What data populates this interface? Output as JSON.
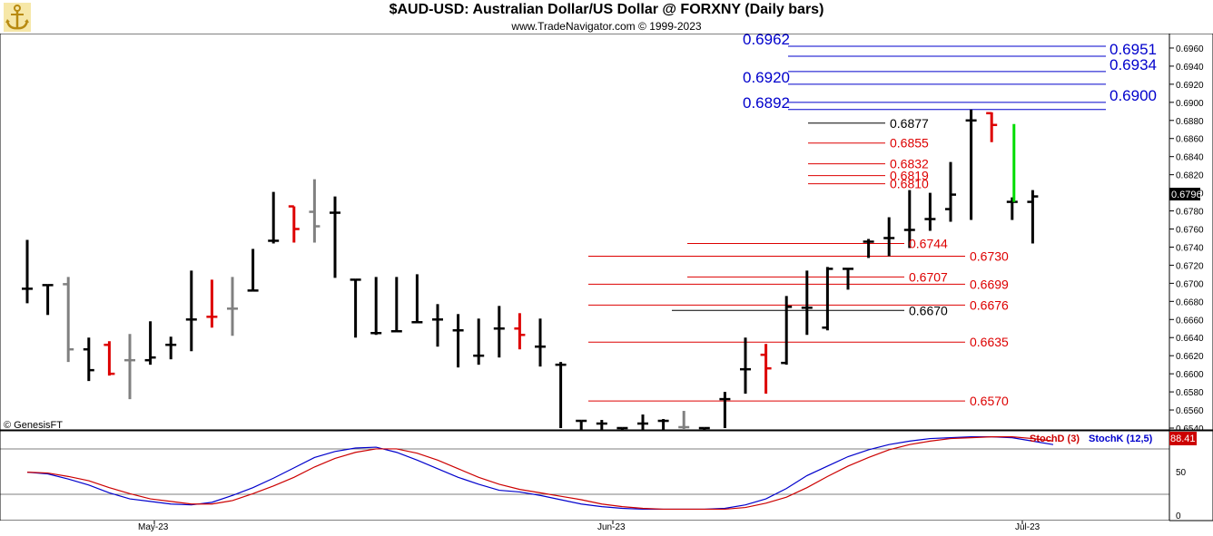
{
  "header": {
    "title": "$AUD-USD:  Australian Dollar/US Dollar @ FORXNY  (Daily bars)",
    "subtitle": "www.TradeNavigator.com © 1999-2023",
    "logo_icon": "anchor-icon"
  },
  "chart_data": [
    {
      "type": "ohlc",
      "title": "$AUD-USD:  Australian Dollar/US Dollar @ FORXNY  (Daily bars)",
      "watermark": "© GenesisFT",
      "y_axis": {
        "range": [
          0.6538,
          0.6976
        ],
        "ticks": [
          "0.6960",
          "0.6940",
          "0.6920",
          "0.6900",
          "0.6880",
          "0.6860",
          "0.6840",
          "0.6820",
          "0.6800",
          "0.6780",
          "0.6760",
          "0.6740",
          "0.6720",
          "0.6700",
          "0.6680",
          "0.6660",
          "0.6640",
          "0.6620",
          "0.6600",
          "0.6580",
          "0.6560",
          "0.6540"
        ],
        "last_price_label": "0.6796"
      },
      "x_axis": {
        "labels": [
          "May-23",
          "Jun-23",
          "Jul-23"
        ]
      },
      "colors": {
        "up": "#000000",
        "down": "#dd0000",
        "neutral": "#808080",
        "projection": "#00dd00",
        "blue_levels": "#0000cc",
        "red_levels": "#dd0000",
        "black_levels": "#000000"
      },
      "bars": [
        {
          "date": "2023-04-24",
          "o": 0.6694,
          "h": 0.6748,
          "l": 0.6678,
          "c": 0.6694,
          "color": "black"
        },
        {
          "date": "2023-04-25",
          "o": 0.6698,
          "h": 0.6698,
          "l": 0.6665,
          "c": 0.6698,
          "color": "black"
        },
        {
          "date": "2023-04-26",
          "o": 0.6699,
          "h": 0.6707,
          "l": 0.6613,
          "c": 0.6627,
          "color": "gray"
        },
        {
          "date": "2023-04-27",
          "o": 0.6627,
          "h": 0.664,
          "l": 0.6592,
          "c": 0.6604,
          "color": "black"
        },
        {
          "date": "2023-04-28",
          "o": 0.6632,
          "h": 0.6636,
          "l": 0.6598,
          "c": 0.66,
          "color": "red"
        },
        {
          "date": "2023-05-01",
          "o": 0.6615,
          "h": 0.6644,
          "l": 0.6572,
          "c": 0.6615,
          "color": "gray"
        },
        {
          "date": "2023-05-02",
          "o": 0.6615,
          "h": 0.6658,
          "l": 0.661,
          "c": 0.6618,
          "color": "black"
        },
        {
          "date": "2023-05-03",
          "o": 0.6632,
          "h": 0.6641,
          "l": 0.6616,
          "c": 0.6632,
          "color": "black"
        },
        {
          "date": "2023-05-04",
          "o": 0.666,
          "h": 0.6714,
          "l": 0.6625,
          "c": 0.666,
          "color": "black"
        },
        {
          "date": "2023-05-05",
          "o": 0.6663,
          "h": 0.6704,
          "l": 0.6651,
          "c": 0.6663,
          "color": "red"
        },
        {
          "date": "2023-05-08",
          "o": 0.6672,
          "h": 0.6707,
          "l": 0.6642,
          "c": 0.6672,
          "color": "gray"
        },
        {
          "date": "2023-05-09",
          "o": 0.6692,
          "h": 0.6738,
          "l": 0.6692,
          "c": 0.6692,
          "color": "black"
        },
        {
          "date": "2023-05-10",
          "o": 0.6747,
          "h": 0.6801,
          "l": 0.6744,
          "c": 0.6747,
          "color": "black"
        },
        {
          "date": "2023-05-11",
          "o": 0.6785,
          "h": 0.6785,
          "l": 0.6745,
          "c": 0.676,
          "color": "red"
        },
        {
          "date": "2023-05-12",
          "o": 0.6779,
          "h": 0.6815,
          "l": 0.6745,
          "c": 0.6763,
          "color": "gray"
        },
        {
          "date": "2023-05-15",
          "o": 0.6778,
          "h": 0.6796,
          "l": 0.6706,
          "c": 0.6778,
          "color": "black"
        },
        {
          "date": "2023-05-16",
          "o": 0.6704,
          "h": 0.6704,
          "l": 0.664,
          "c": 0.6704,
          "color": "black"
        },
        {
          "date": "2023-05-17",
          "o": 0.6645,
          "h": 0.6707,
          "l": 0.6643,
          "c": 0.6645,
          "color": "black"
        },
        {
          "date": "2023-05-18",
          "o": 0.6647,
          "h": 0.6707,
          "l": 0.6646,
          "c": 0.6647,
          "color": "black"
        },
        {
          "date": "2023-05-19",
          "o": 0.6657,
          "h": 0.671,
          "l": 0.6656,
          "c": 0.6657,
          "color": "black"
        },
        {
          "date": "2023-05-22",
          "o": 0.666,
          "h": 0.6677,
          "l": 0.663,
          "c": 0.666,
          "color": "black"
        },
        {
          "date": "2023-05-23",
          "o": 0.6648,
          "h": 0.6666,
          "l": 0.6607,
          "c": 0.6648,
          "color": "black"
        },
        {
          "date": "2023-05-24",
          "o": 0.662,
          "h": 0.6661,
          "l": 0.661,
          "c": 0.662,
          "color": "black"
        },
        {
          "date": "2023-05-25",
          "o": 0.665,
          "h": 0.6675,
          "l": 0.6618,
          "c": 0.665,
          "color": "black"
        },
        {
          "date": "2023-05-26",
          "o": 0.665,
          "h": 0.6667,
          "l": 0.6627,
          "c": 0.6643,
          "color": "red"
        },
        {
          "date": "2023-05-29",
          "o": 0.663,
          "h": 0.6661,
          "l": 0.6608,
          "c": 0.663,
          "color": "black"
        },
        {
          "date": "2023-05-30",
          "o": 0.661,
          "h": 0.6613,
          "l": 0.654,
          "c": 0.661,
          "color": "black"
        },
        {
          "date": "2023-05-31",
          "o": 0.6548,
          "h": 0.6548,
          "l": 0.6538,
          "c": 0.6548,
          "color": "black"
        },
        {
          "date": "2023-06-01",
          "o": 0.6545,
          "h": 0.6549,
          "l": 0.6538,
          "c": 0.6545,
          "color": "black"
        },
        {
          "date": "2023-06-02",
          "o": 0.654,
          "h": 0.654,
          "l": 0.6538,
          "c": 0.654,
          "color": "black"
        },
        {
          "date": "2023-06-05",
          "o": 0.6545,
          "h": 0.6555,
          "l": 0.6538,
          "c": 0.6545,
          "color": "black"
        },
        {
          "date": "2023-06-06",
          "o": 0.6548,
          "h": 0.655,
          "l": 0.6538,
          "c": 0.6548,
          "color": "black"
        },
        {
          "date": "2023-06-07",
          "o": 0.6541,
          "h": 0.6559,
          "l": 0.6538,
          "c": 0.6541,
          "color": "gray"
        },
        {
          "date": "2023-06-08",
          "o": 0.654,
          "h": 0.654,
          "l": 0.6538,
          "c": 0.654,
          "color": "black"
        },
        {
          "date": "2023-06-09",
          "o": 0.6572,
          "h": 0.658,
          "l": 0.654,
          "c": 0.6572,
          "color": "black"
        },
        {
          "date": "2023-06-12",
          "o": 0.6605,
          "h": 0.664,
          "l": 0.6578,
          "c": 0.6605,
          "color": "black"
        },
        {
          "date": "2023-06-13",
          "o": 0.6621,
          "h": 0.6633,
          "l": 0.6578,
          "c": 0.6606,
          "color": "red"
        },
        {
          "date": "2023-06-14",
          "o": 0.6612,
          "h": 0.6686,
          "l": 0.661,
          "c": 0.6674,
          "color": "black"
        },
        {
          "date": "2023-06-15",
          "o": 0.6673,
          "h": 0.6714,
          "l": 0.6643,
          "c": 0.6673,
          "color": "black"
        },
        {
          "date": "2023-06-16",
          "o": 0.6651,
          "h": 0.6718,
          "l": 0.6648,
          "c": 0.6716,
          "color": "black"
        },
        {
          "date": "2023-06-19",
          "o": 0.6716,
          "h": 0.6715,
          "l": 0.6693,
          "c": 0.6716,
          "color": "black"
        },
        {
          "date": "2023-06-20",
          "o": 0.6746,
          "h": 0.6749,
          "l": 0.6728,
          "c": 0.6746,
          "color": "black"
        },
        {
          "date": "2023-06-21",
          "o": 0.675,
          "h": 0.6773,
          "l": 0.673,
          "c": 0.675,
          "color": "black"
        },
        {
          "date": "2023-06-22",
          "o": 0.6759,
          "h": 0.6803,
          "l": 0.6739,
          "c": 0.6759,
          "color": "black"
        },
        {
          "date": "2023-06-23",
          "o": 0.6771,
          "h": 0.68,
          "l": 0.6758,
          "c": 0.6771,
          "color": "black"
        },
        {
          "date": "2023-06-26",
          "o": 0.6782,
          "h": 0.6834,
          "l": 0.6768,
          "c": 0.6798,
          "color": "black"
        },
        {
          "date": "2023-06-27",
          "o": 0.688,
          "h": 0.6892,
          "l": 0.677,
          "c": 0.688,
          "color": "black"
        },
        {
          "date": "2023-06-28",
          "o": 0.6888,
          "h": 0.6889,
          "l": 0.6856,
          "c": 0.6875,
          "color": "red"
        },
        {
          "date": "2023-06-29",
          "o": 0.679,
          "h": 0.6795,
          "l": 0.677,
          "c": 0.679,
          "color": "black"
        },
        {
          "date": "2023-06-30",
          "o": 0.679,
          "h": 0.6803,
          "l": 0.6744,
          "c": 0.6796,
          "color": "black"
        }
      ],
      "projection": {
        "from": 0.6876,
        "to": 0.679,
        "date": "2023-06-29",
        "color": "green"
      },
      "levels": [
        {
          "label": "0.6962",
          "value": 0.6962,
          "color": "blue",
          "side": "left"
        },
        {
          "label": "0.6951",
          "value": 0.6951,
          "color": "blue",
          "side": "right"
        },
        {
          "label": "0.6934",
          "value": 0.6934,
          "color": "blue",
          "side": "right"
        },
        {
          "label": "0.6920",
          "value": 0.692,
          "color": "blue",
          "side": "left"
        },
        {
          "label": "0.6900",
          "value": 0.69,
          "color": "blue",
          "side": "right"
        },
        {
          "label": "0.6892",
          "value": 0.6892,
          "color": "blue",
          "side": "left"
        },
        {
          "label": "0.6877",
          "value": 0.6877,
          "color": "black",
          "side": "right"
        },
        {
          "label": "0.6855",
          "value": 0.6855,
          "color": "red",
          "side": "right"
        },
        {
          "label": "0.6832",
          "value": 0.6832,
          "color": "red",
          "side": "right"
        },
        {
          "label": "0.6819",
          "value": 0.6819,
          "color": "red",
          "side": "right"
        },
        {
          "label": "0.6810",
          "value": 0.681,
          "color": "red",
          "side": "right"
        },
        {
          "label": "0.6744",
          "value": 0.6744,
          "color": "red",
          "side": "right"
        },
        {
          "label": "0.6730",
          "value": 0.673,
          "color": "red",
          "side": "right"
        },
        {
          "label": "0.6707",
          "value": 0.6707,
          "color": "red",
          "side": "right"
        },
        {
          "label": "0.6699",
          "value": 0.6699,
          "color": "red",
          "side": "right"
        },
        {
          "label": "0.6676",
          "value": 0.6676,
          "color": "red",
          "side": "right"
        },
        {
          "label": "0.6670",
          "value": 0.667,
          "color": "black",
          "side": "right"
        },
        {
          "label": "0.6635",
          "value": 0.6635,
          "color": "red",
          "side": "right"
        },
        {
          "label": "0.6570",
          "value": 0.657,
          "color": "red",
          "side": "right"
        }
      ]
    },
    {
      "type": "line",
      "legend": [
        {
          "name": "StochD (3)",
          "color": "#cc0000"
        },
        {
          "name": "StochK (12,5)",
          "color": "#0000cc"
        }
      ],
      "y_axis": {
        "range": [
          0,
          100
        ],
        "ticks": [
          "50",
          "0"
        ],
        "reference_lines": [
          80,
          20
        ],
        "last_value_label": "88.41"
      },
      "series": [
        {
          "name": "StochK (12,5)",
          "values": [
            52,
            50,
            44,
            37,
            28,
            21,
            18,
            15,
            14,
            17,
            25,
            34,
            45,
            57,
            69,
            76,
            80,
            81,
            75,
            66,
            56,
            46,
            38,
            31,
            29,
            25,
            20,
            15,
            12,
            10,
            9,
            9,
            9,
            9,
            10,
            14,
            21,
            33,
            48,
            59,
            70,
            78,
            84,
            88,
            91,
            92,
            93,
            93,
            92,
            88,
            84
          ]
        },
        {
          "name": "StochD (3)",
          "values": [
            52,
            51,
            47,
            42,
            34,
            27,
            21,
            18,
            15,
            15,
            19,
            27,
            36,
            46,
            58,
            68,
            75,
            79,
            79,
            74,
            66,
            56,
            46,
            38,
            32,
            28,
            24,
            20,
            15,
            12,
            10,
            9,
            9,
            9,
            9,
            11,
            16,
            23,
            34,
            47,
            59,
            69,
            78,
            84,
            88,
            91,
            92,
            93,
            93,
            91,
            88
          ]
        }
      ]
    }
  ]
}
